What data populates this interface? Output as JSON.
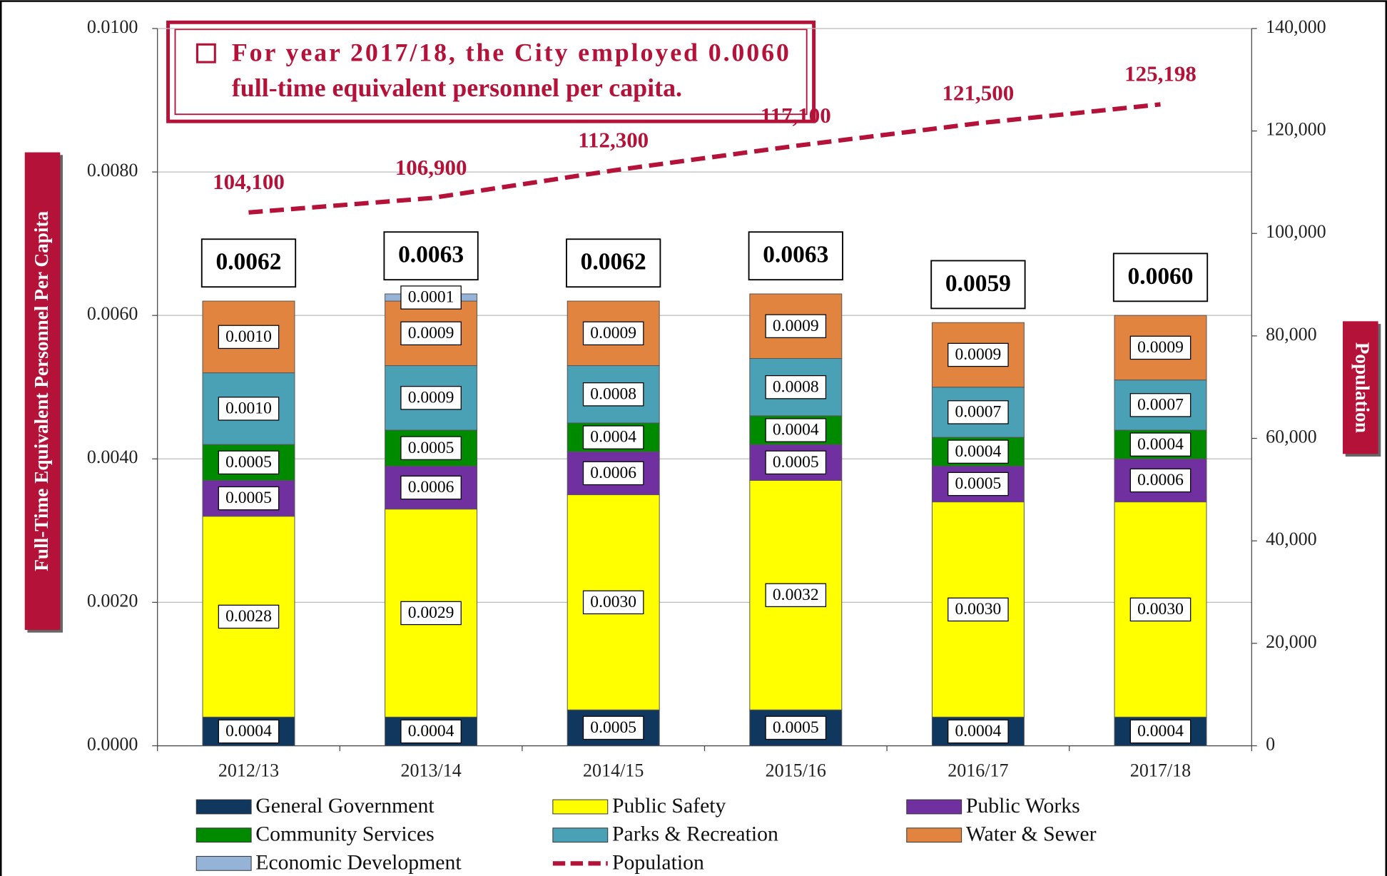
{
  "chart_data": {
    "type": "bar",
    "annotation": [
      "For year 2017/18, the City employed 0.0060",
      "full-time equivalent personnel per capita."
    ],
    "y_label": "Full-Time Equivalent Personnel Per Capita",
    "y2_label": "Population",
    "categories": [
      "2012/13",
      "2013/14",
      "2014/15",
      "2015/16",
      "2016/17",
      "2017/18"
    ],
    "series": [
      {
        "name": "General Government",
        "color": "#10375e",
        "values": [
          0.0004,
          0.0004,
          0.0005,
          0.0005,
          0.0004,
          0.0004
        ]
      },
      {
        "name": "Public Safety",
        "color": "#ffff00",
        "values": [
          0.0028,
          0.0029,
          0.003,
          0.0032,
          0.003,
          0.003
        ],
        "value_labels": [
          "0.0028",
          "0.0029",
          "0.0030",
          "0.0032",
          "0.0030",
          "0.0030"
        ]
      },
      {
        "name": "Public Works",
        "color": "#7030a0",
        "values": [
          0.0005,
          0.0006,
          0.0006,
          0.0005,
          0.0005,
          0.0006
        ]
      },
      {
        "name": "Community Services",
        "color": "#008a00",
        "values": [
          0.0005,
          0.0005,
          0.0004,
          0.0004,
          0.0004,
          0.0004
        ]
      },
      {
        "name": "Parks & Recreation",
        "color": "#4aa0b5",
        "values": [
          0.001,
          0.0009,
          0.0008,
          0.0008,
          0.0007,
          0.0007
        ],
        "value_labels": [
          "0.0010",
          "0.0009",
          "0.0008",
          "0.0008",
          "0.0007",
          "0.0007"
        ]
      },
      {
        "name": "Water & Sewer",
        "color": "#e0843f",
        "values": [
          0.001,
          0.0009,
          0.0009,
          0.0009,
          0.0009,
          0.0009
        ],
        "value_labels": [
          "0.0010",
          "0.0009",
          "0.0009",
          "0.0009",
          "0.0009",
          "0.0009"
        ]
      },
      {
        "name": "Economic Development",
        "color": "#95b3d7",
        "values": [
          null,
          0.0001,
          null,
          null,
          null,
          null
        ]
      },
      {
        "name": "Population",
        "type": "line",
        "axis": "y2",
        "color": "#b5123a",
        "values": [
          104100,
          106900,
          112300,
          117100,
          121500,
          125198
        ],
        "value_labels": [
          "104,100",
          "106,900",
          "112,300",
          "117,100",
          "121,500",
          "125,198"
        ]
      }
    ],
    "totals": [
      0.0062,
      0.0063,
      0.0062,
      0.0063,
      0.0059,
      0.006
    ],
    "total_labels": [
      "0.0062",
      "0.0063",
      "0.0062",
      "0.0063",
      "0.0059",
      "0.0060"
    ],
    "ylim": [
      0,
      0.01
    ],
    "yticks": [
      {
        "value": 0,
        "label": "0.0000"
      },
      {
        "value": 0.002,
        "label": "0.0020"
      },
      {
        "value": 0.004,
        "label": "0.0040"
      },
      {
        "value": 0.006,
        "label": "0.0060"
      },
      {
        "value": 0.008,
        "label": "0.0080"
      },
      {
        "value": 0.01,
        "label": "0.0100"
      }
    ],
    "y2lim": [
      0,
      140000
    ],
    "y2ticks": [
      0,
      {
        "value": 20000,
        "label": "20,000"
      },
      {
        "value": 40000,
        "label": "40,000"
      },
      {
        "value": 60000,
        "label": "60,000"
      },
      {
        "value": 80000,
        "label": "80,000"
      },
      {
        "value": 100000,
        "label": "100,000"
      },
      {
        "value": 120000,
        "label": "120,000"
      },
      {
        "value": 140000,
        "label": "140,000"
      }
    ],
    "grid": true
  }
}
